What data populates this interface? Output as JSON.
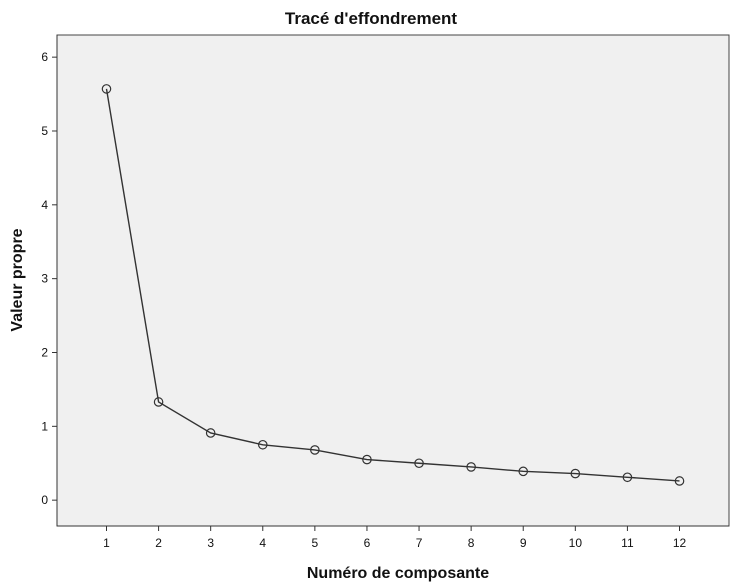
{
  "chart_data": {
    "type": "line",
    "title": "Tracé d'effondrement",
    "xlabel": "Numéro de composante",
    "ylabel": "Valeur propre",
    "x": [
      1,
      2,
      3,
      4,
      5,
      6,
      7,
      8,
      9,
      10,
      11,
      12
    ],
    "series": [
      {
        "values": [
          5.57,
          1.33,
          0.91,
          0.75,
          0.68,
          0.55,
          0.5,
          0.45,
          0.39,
          0.36,
          0.31,
          0.26
        ]
      }
    ],
    "xticks": [
      "1",
      "2",
      "3",
      "4",
      "5",
      "6",
      "7",
      "8",
      "9",
      "10",
      "11",
      "12"
    ],
    "yticks": [
      "0",
      "1",
      "2",
      "3",
      "4",
      "5",
      "6"
    ],
    "xlim": [
      0.05,
      12.95
    ],
    "ylim": [
      -0.35,
      6.3
    ],
    "grid": false,
    "legend": "none",
    "colors": {
      "line": "#333333",
      "background": "#f0f0f0"
    }
  }
}
